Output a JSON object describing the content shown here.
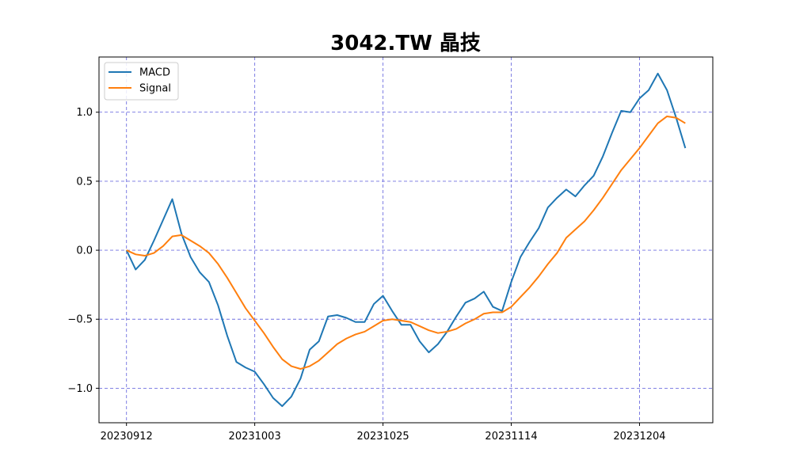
{
  "chart_data": {
    "type": "line",
    "title": "3042.TW 晶技",
    "xlabel": "",
    "ylabel": "",
    "ylim": [
      -1.25,
      1.4
    ],
    "yticks": [
      -1.0,
      -0.5,
      0.0,
      0.5,
      1.0
    ],
    "ytick_labels": [
      "−1.0",
      "−0.5",
      "0.0",
      "0.5",
      "1.0"
    ],
    "xticks": [
      0,
      14,
      28,
      42,
      56
    ],
    "xtick_labels": [
      "20230912",
      "20231003",
      "20231025",
      "20231114",
      "20231204"
    ],
    "xlim": [
      -3,
      64
    ],
    "grid": true,
    "legend_position": "top-left",
    "colors": {
      "MACD": "#1f77b4",
      "Signal": "#ff7f0e",
      "grid": "#7070e0"
    },
    "series": [
      {
        "name": "MACD",
        "values": [
          0.0,
          -0.14,
          -0.07,
          0.07,
          0.22,
          0.37,
          0.12,
          -0.05,
          -0.16,
          -0.23,
          -0.4,
          -0.62,
          -0.81,
          -0.85,
          -0.88,
          -0.97,
          -1.07,
          -1.13,
          -1.06,
          -0.93,
          -0.72,
          -0.66,
          -0.48,
          -0.47,
          -0.49,
          -0.52,
          -0.52,
          -0.39,
          -0.33,
          -0.44,
          -0.54,
          -0.54,
          -0.66,
          -0.74,
          -0.68,
          -0.59,
          -0.48,
          -0.38,
          -0.35,
          -0.3,
          -0.41,
          -0.44,
          -0.23,
          -0.05,
          0.06,
          0.16,
          0.31,
          0.38,
          0.44,
          0.39,
          0.47,
          0.54,
          0.68,
          0.85,
          1.01,
          1.0,
          1.1,
          1.16,
          1.28,
          1.16,
          0.96,
          0.74
        ]
      },
      {
        "name": "Signal",
        "values": [
          0.0,
          -0.03,
          -0.04,
          -0.02,
          0.03,
          0.1,
          0.11,
          0.07,
          0.03,
          -0.02,
          -0.1,
          -0.2,
          -0.31,
          -0.42,
          -0.51,
          -0.6,
          -0.7,
          -0.79,
          -0.84,
          -0.86,
          -0.84,
          -0.8,
          -0.74,
          -0.68,
          -0.64,
          -0.61,
          -0.59,
          -0.55,
          -0.51,
          -0.5,
          -0.51,
          -0.52,
          -0.55,
          -0.58,
          -0.6,
          -0.59,
          -0.57,
          -0.53,
          -0.5,
          -0.46,
          -0.45,
          -0.45,
          -0.41,
          -0.34,
          -0.27,
          -0.19,
          -0.1,
          -0.02,
          0.09,
          0.15,
          0.21,
          0.29,
          0.38,
          0.48,
          0.58,
          0.66,
          0.74,
          0.83,
          0.92,
          0.97,
          0.96,
          0.92
        ]
      }
    ]
  }
}
